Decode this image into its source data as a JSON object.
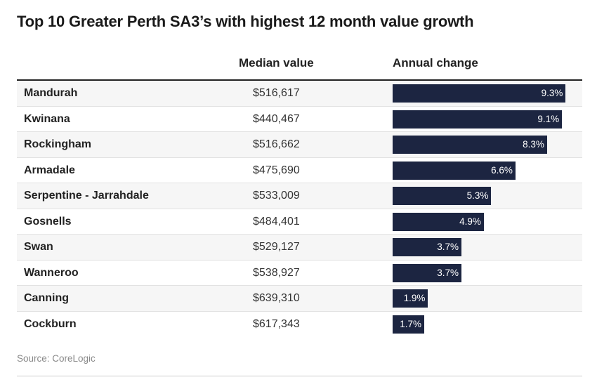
{
  "title": "Top 10 Greater Perth SA3’s with highest 12 month value growth",
  "source": "Source: CoreLogic",
  "colors": {
    "bar": "#1c2541",
    "row_alt": "#f6f6f6"
  },
  "chart_data": {
    "type": "table",
    "title": "Top 10 Greater Perth SA3’s with highest 12 month value growth",
    "columns": [
      "",
      "Median value",
      "Annual change"
    ],
    "rows": [
      {
        "name": "Mandurah",
        "median_value": "$516,617",
        "annual_change": 9.3,
        "annual_change_label": "9.3%"
      },
      {
        "name": "Kwinana",
        "median_value": "$440,467",
        "annual_change": 9.1,
        "annual_change_label": "9.1%"
      },
      {
        "name": "Rockingham",
        "median_value": "$516,662",
        "annual_change": 8.3,
        "annual_change_label": "8.3%"
      },
      {
        "name": "Armadale",
        "median_value": "$475,690",
        "annual_change": 6.6,
        "annual_change_label": "6.6%"
      },
      {
        "name": "Serpentine - Jarrahdale",
        "median_value": "$533,009",
        "annual_change": 5.3,
        "annual_change_label": "5.3%"
      },
      {
        "name": "Gosnells",
        "median_value": "$484,401",
        "annual_change": 4.9,
        "annual_change_label": "4.9%"
      },
      {
        "name": "Swan",
        "median_value": "$529,127",
        "annual_change": 3.7,
        "annual_change_label": "3.7%"
      },
      {
        "name": "Wanneroo",
        "median_value": "$538,927",
        "annual_change": 3.7,
        "annual_change_label": "3.7%"
      },
      {
        "name": "Canning",
        "median_value": "$639,310",
        "annual_change": 1.9,
        "annual_change_label": "1.9%"
      },
      {
        "name": "Cockburn",
        "median_value": "$617,343",
        "annual_change": 1.7,
        "annual_change_label": "1.7%"
      }
    ]
  }
}
